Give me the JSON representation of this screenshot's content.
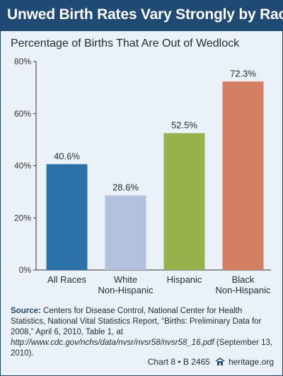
{
  "title": "Unwed Birth Rates Vary Strongly by Race",
  "subtitle": "Percentage of Births That Are Out of Wedlock",
  "colors": {
    "header_bg": "#1f4a73",
    "panel_bg": "#eaf1f8",
    "bars": [
      "#2b72a8",
      "#b3c1df",
      "#98b24b",
      "#d47f62"
    ]
  },
  "chart_data": {
    "type": "bar",
    "categories": [
      [
        "All Races"
      ],
      [
        "White",
        "Non-Hispanic"
      ],
      [
        "Hispanic"
      ],
      [
        "Black",
        "Non-Hispanic"
      ]
    ],
    "values": [
      40.6,
      28.6,
      52.5,
      72.3
    ],
    "value_labels": [
      "40.6%",
      "28.6%",
      "52.5%",
      "72.3%"
    ],
    "yticks": [
      "0%",
      "20%",
      "40%",
      "60%",
      "80%"
    ],
    "ytick_values": [
      0,
      20,
      40,
      60,
      80
    ],
    "ylim": [
      0,
      80
    ],
    "grid": false
  },
  "source": {
    "label": "Source:",
    "text1": " Centers for Disease Control, National Center for Health Statistics, National Vital Statistics Report, “Births: Preliminary Data for 2008,” April 6, 2010, Table 1, at ",
    "url": "http://www.cdc.gov/nchs/data/nvsr/nvsr58/nvsr58_16.pdf",
    "text2": " (September 13, 2010)."
  },
  "footer": {
    "chart_id": "Chart 8 • B 2465",
    "site": "heritage.org"
  }
}
